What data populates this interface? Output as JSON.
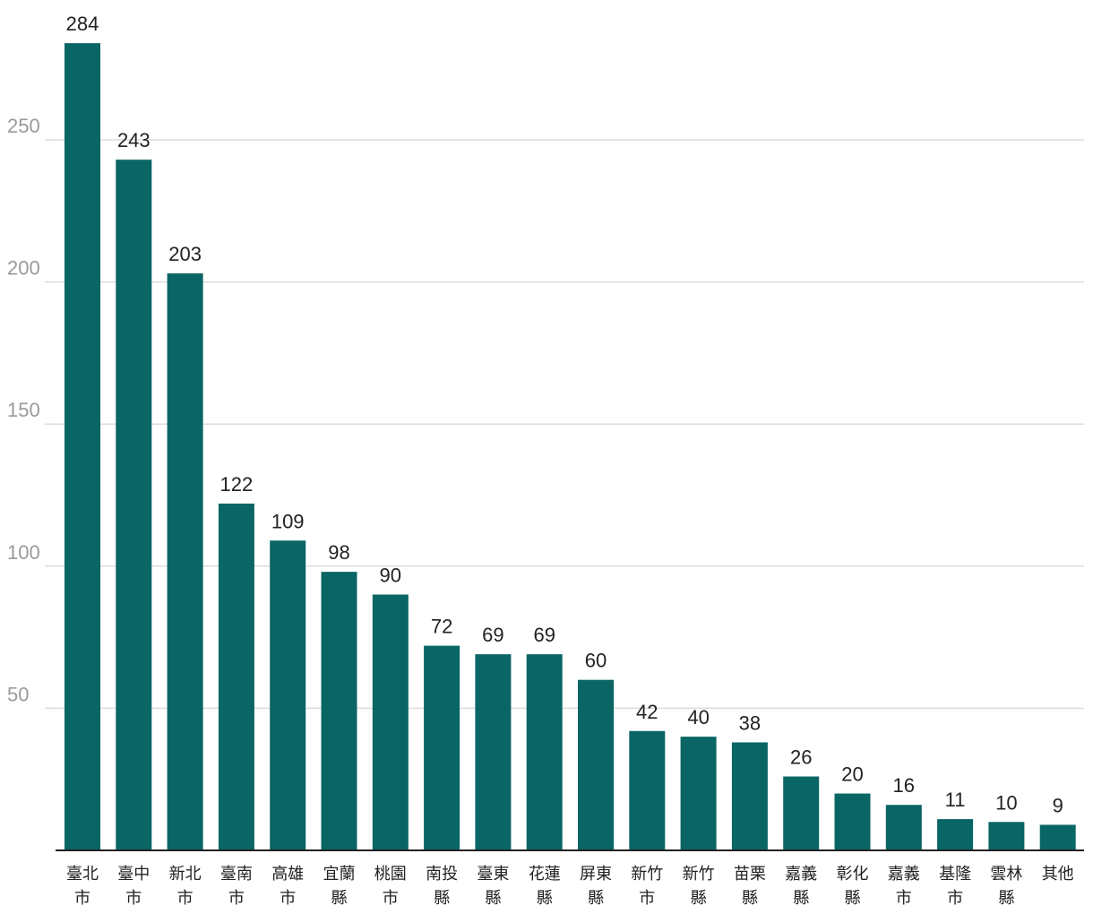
{
  "chart_data": {
    "type": "bar",
    "title": "",
    "xlabel": "",
    "ylabel": "",
    "categories": [
      [
        "臺北",
        "市"
      ],
      [
        "臺中",
        "市"
      ],
      [
        "新北",
        "市"
      ],
      [
        "臺南",
        "市"
      ],
      [
        "高雄",
        "市"
      ],
      [
        "宜蘭",
        "縣"
      ],
      [
        "桃園",
        "市"
      ],
      [
        "南投",
        "縣"
      ],
      [
        "臺東",
        "縣"
      ],
      [
        "花蓮",
        "縣"
      ],
      [
        "屏東",
        "縣"
      ],
      [
        "新竹",
        "市"
      ],
      [
        "新竹",
        "縣"
      ],
      [
        "苗栗",
        "縣"
      ],
      [
        "嘉義",
        "縣"
      ],
      [
        "彰化",
        "縣"
      ],
      [
        "嘉義",
        "市"
      ],
      [
        "基隆",
        "市"
      ],
      [
        "雲林",
        "縣"
      ],
      [
        "其他",
        ""
      ]
    ],
    "values": [
      284,
      243,
      203,
      122,
      109,
      98,
      90,
      72,
      69,
      69,
      60,
      42,
      40,
      38,
      26,
      20,
      16,
      11,
      10,
      9
    ],
    "ylim": [
      0,
      300
    ],
    "yticks": [
      50,
      100,
      150,
      200,
      250
    ],
    "grid": true,
    "legend": "none",
    "bar_color": "#0a6565",
    "gridline_color": "#dcdcdc",
    "tick_label_color": "#9a9a9a"
  }
}
